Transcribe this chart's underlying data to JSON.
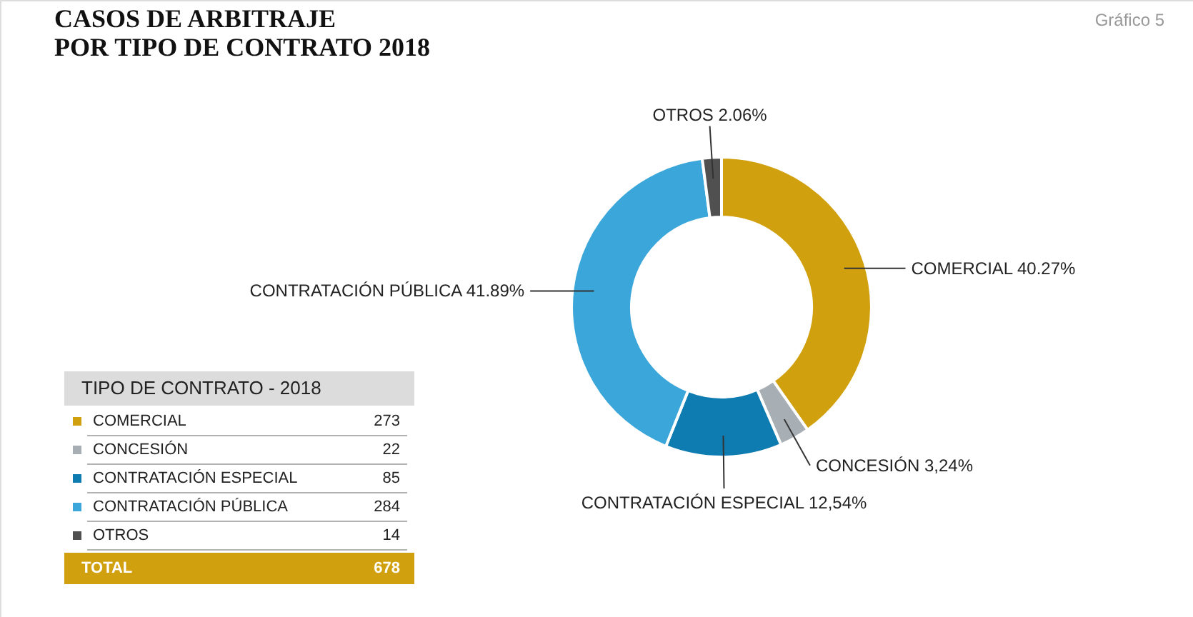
{
  "chart_data": [
    {
      "type": "donut",
      "title": "CASOS DE ARBITRAJE\nPOR TIPO DE CONTRATO 2018",
      "categories": [
        "COMERCIAL",
        "CONCESIÓN",
        "CONTRATACIÓN ESPECIAL",
        "CONTRATACIÓN PÚBLICA",
        "OTROS"
      ],
      "values": [
        40.27,
        3.24,
        12.54,
        41.89,
        2.06
      ],
      "value_labels": [
        "40.27%",
        "3,24%",
        "12,54%",
        "41.89%",
        "2.06%"
      ],
      "colors": [
        "#d1a00e",
        "#a8afb4",
        "#0e7bb1",
        "#3ba6d9",
        "#505050"
      ],
      "annotations": [
        "Gráfico 5"
      ],
      "legend": "bottom left"
    },
    {
      "type": "other",
      "title": "TIPO DE CONTRATO - 2018",
      "categories": [
        "COMERCIAL",
        "CONCESIÓN",
        "CONTRATACIÓN ESPECIAL",
        "CONTRATACIÓN PÚBLICA",
        "OTROS"
      ],
      "values": [
        273,
        22,
        85,
        284,
        14
      ],
      "colors": [
        "#d1a00e",
        "#a8afb4",
        "#0e7bb1",
        "#3ba6d9",
        "#505050"
      ],
      "data_labels": true,
      "totals": [
        "678"
      ],
      "annotations": [
        "TOTAL"
      ]
    }
  ]
}
